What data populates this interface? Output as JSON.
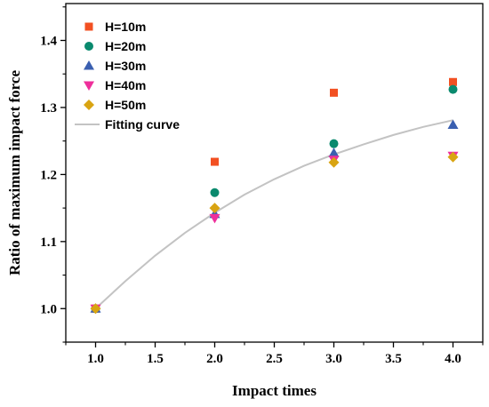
{
  "chart_data": {
    "type": "scatter",
    "xlabel": "Impact times",
    "ylabel": "Ratio of maximum impact force",
    "xlim": [
      0.75,
      4.25
    ],
    "ylim": [
      0.95,
      1.455
    ],
    "x_ticks": [
      "1.0",
      "1.5",
      "2.0",
      "2.5",
      "3.0",
      "3.5",
      "4.0"
    ],
    "y_ticks": [
      "1.0",
      "1.1",
      "1.2",
      "1.3",
      "1.4"
    ],
    "x_tick_values": [
      1.0,
      1.5,
      2.0,
      2.5,
      3.0,
      3.5,
      4.0
    ],
    "y_tick_values": [
      1.0,
      1.1,
      1.2,
      1.3,
      1.4
    ],
    "legend_position": "top-left",
    "grid": false,
    "series": [
      {
        "name": "H=10m",
        "marker": "square",
        "color": "#f25022",
        "x": [
          1,
          2,
          3,
          4
        ],
        "y": [
          1.0,
          1.219,
          1.322,
          1.338
        ]
      },
      {
        "name": "H=20m",
        "marker": "circle",
        "color": "#0a8a6e",
        "x": [
          1,
          2,
          3,
          4
        ],
        "y": [
          1.0,
          1.173,
          1.246,
          1.327
        ]
      },
      {
        "name": "H=30m",
        "marker": "triangle-up",
        "color": "#3a5fb0",
        "x": [
          1,
          2,
          3,
          4
        ],
        "y": [
          1.0,
          1.141,
          1.232,
          1.274
        ]
      },
      {
        "name": "H=40m",
        "marker": "triangle-down",
        "color": "#ee2f9b",
        "x": [
          1,
          2,
          3,
          4
        ],
        "y": [
          1.0,
          1.135,
          1.222,
          1.228
        ]
      },
      {
        "name": "H=50m",
        "marker": "diamond",
        "color": "#d9a412",
        "x": [
          1,
          2,
          3,
          4
        ],
        "y": [
          1.0,
          1.15,
          1.218,
          1.226
        ]
      }
    ],
    "fit": {
      "name": "Fitting curve",
      "color": "#c3c3c3",
      "x": [
        1.0,
        1.25,
        1.5,
        1.75,
        2.0,
        2.25,
        2.5,
        2.75,
        3.0,
        3.25,
        3.5,
        3.75,
        4.0
      ],
      "y": [
        1.0,
        1.041,
        1.079,
        1.113,
        1.143,
        1.17,
        1.193,
        1.213,
        1.23,
        1.245,
        1.259,
        1.271,
        1.281
      ]
    }
  }
}
